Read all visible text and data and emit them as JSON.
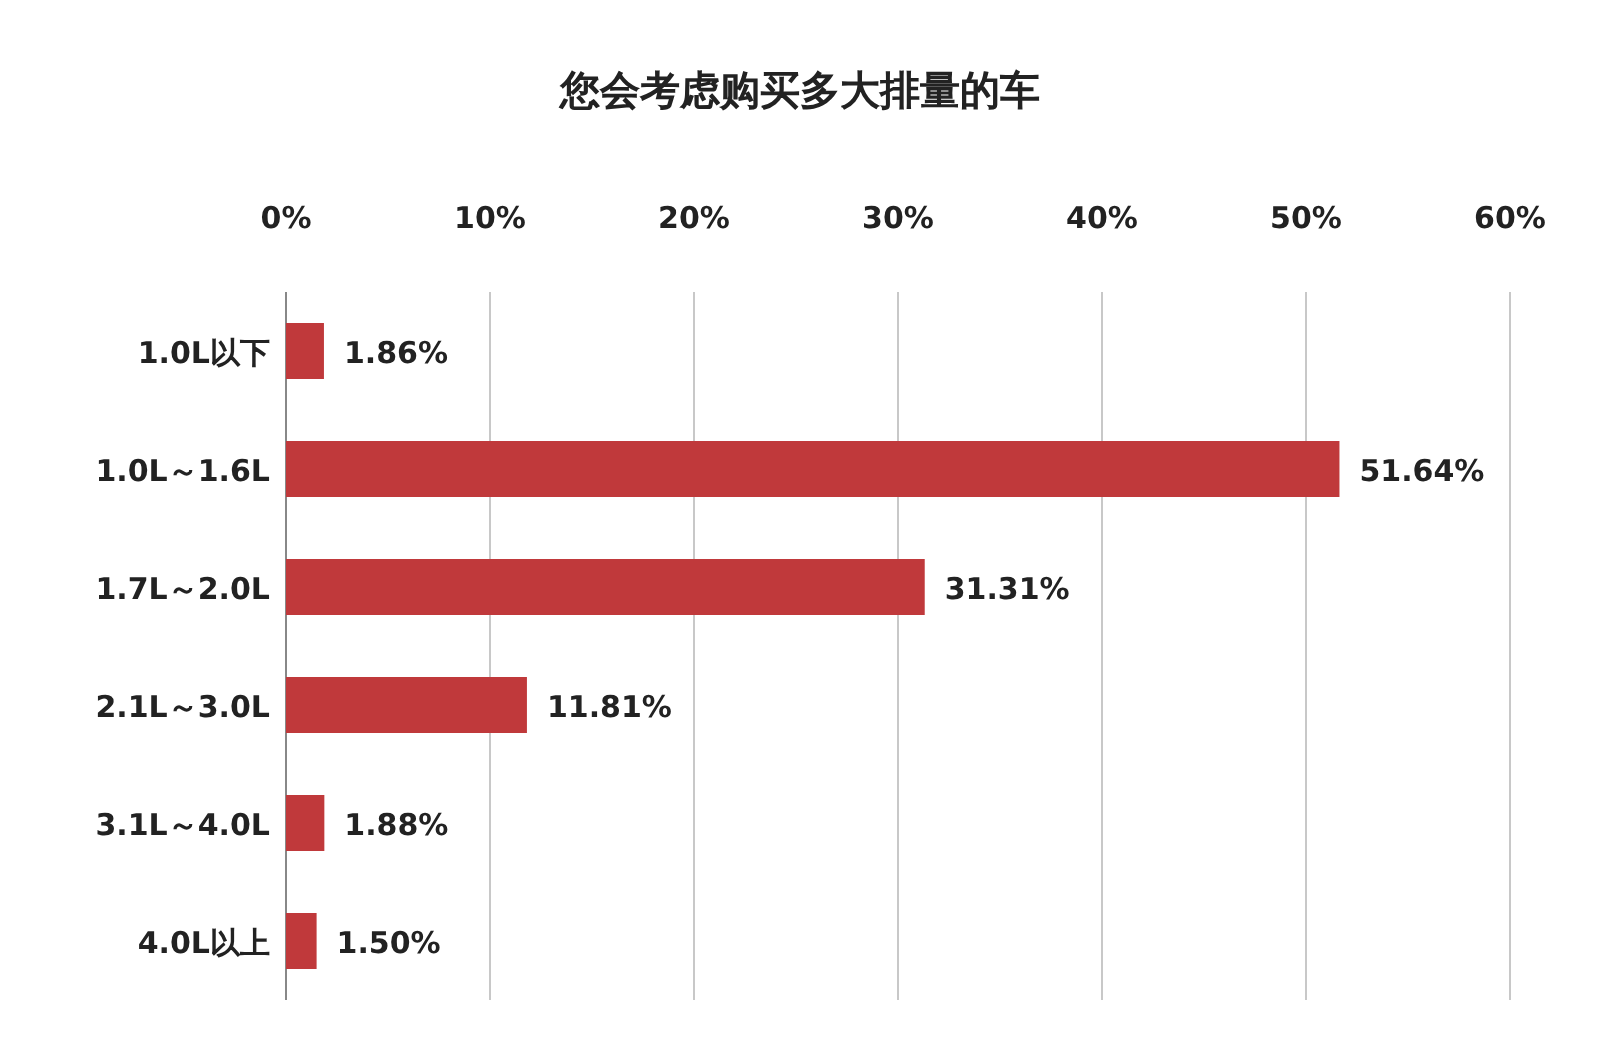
{
  "chart_data": {
    "type": "bar",
    "orientation": "horizontal",
    "title": "您会考虑购买多大排量的车",
    "categories": [
      "1.0L以下",
      "1.0L～1.6L",
      "1.7L～2.0L",
      "2.1L～3.0L",
      "3.1L～4.0L",
      "4.0L以上"
    ],
    "values": [
      1.86,
      51.64,
      31.31,
      11.81,
      1.88,
      1.5
    ],
    "value_labels": [
      "1.86%",
      "51.64%",
      "31.31%",
      "11.81%",
      "1.88%",
      "1.50%"
    ],
    "color": "#c0393b",
    "xlim": [
      0,
      60
    ],
    "xticks": [
      {
        "value": 0,
        "label": "0%"
      },
      {
        "value": 10,
        "label": "10%"
      },
      {
        "value": 20,
        "label": "20%"
      },
      {
        "value": 30,
        "label": "30%"
      },
      {
        "value": 40,
        "label": "40%"
      },
      {
        "value": 50,
        "label": "50%"
      },
      {
        "value": 60,
        "label": "60%"
      }
    ],
    "grid": "x"
  }
}
